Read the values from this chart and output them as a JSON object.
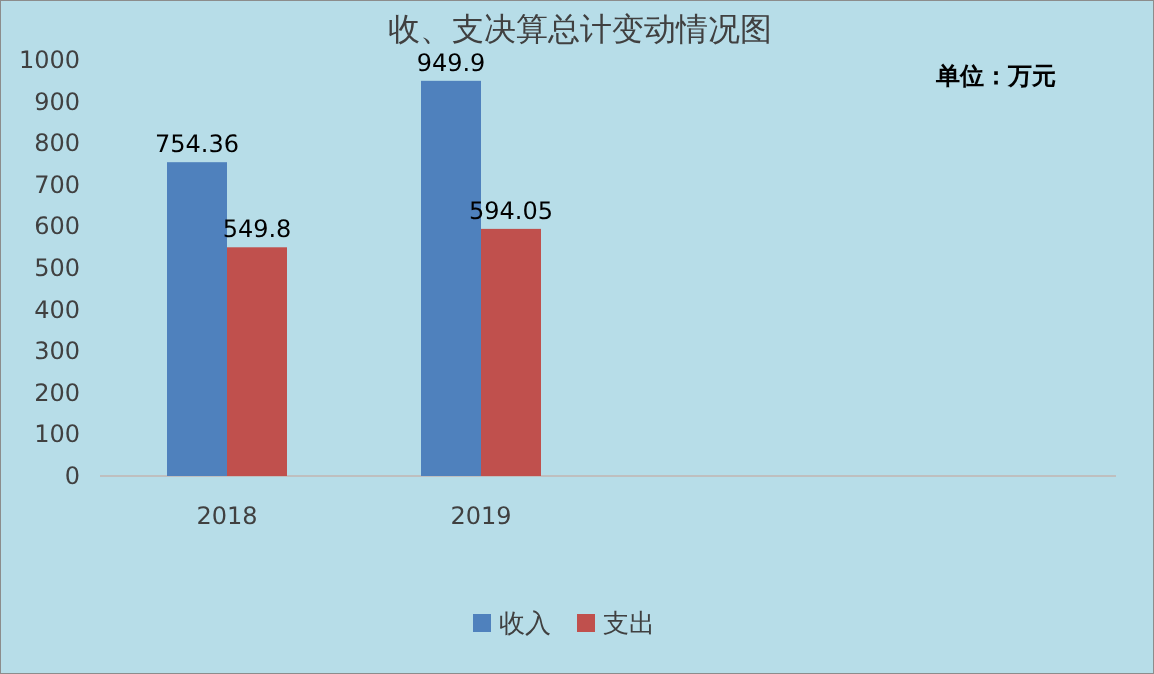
{
  "chart_data": {
    "type": "bar",
    "title": "收、支决算总计变动情况图",
    "categories": [
      "2018",
      "2019",
      null,
      null
    ],
    "series": [
      {
        "name": "收入",
        "color": "#4f81bd",
        "values": [
          754.36,
          949.9,
          null,
          null
        ]
      },
      {
        "name": "支出",
        "color": "#c0504d",
        "values": [
          549.8,
          594.05,
          null,
          null
        ]
      }
    ],
    "ylim": [
      0,
      1000
    ],
    "yticks": [
      0,
      100,
      200,
      300,
      400,
      500,
      600,
      700,
      800,
      900,
      1000
    ],
    "data_labels": true,
    "legend": "bottom",
    "annotations": [
      "单位：万元"
    ]
  }
}
